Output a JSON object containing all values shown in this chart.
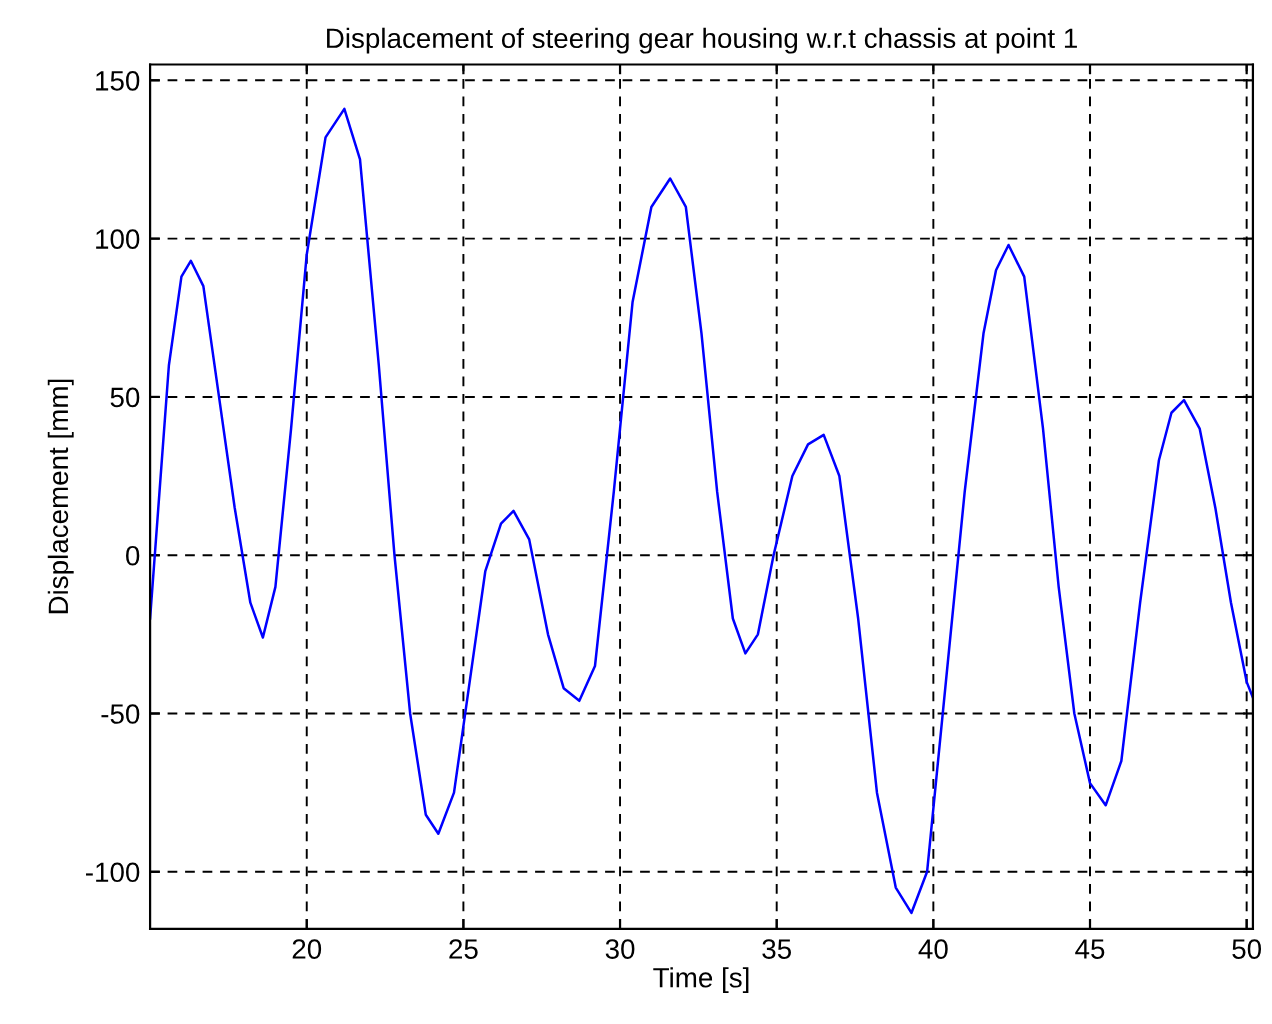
{
  "chart_data": {
    "type": "line",
    "title": "Displacement of steering gear housing w.r.t chassis at point 1",
    "xlabel": "Time [s]",
    "ylabel": "Displacement [mm]",
    "x": [
      15.0,
      15.3,
      15.6,
      16.0,
      16.3,
      16.7,
      17.2,
      17.7,
      18.2,
      18.6,
      19.0,
      19.5,
      20.0,
      20.6,
      21.2,
      21.7,
      22.3,
      22.8,
      23.3,
      23.8,
      24.2,
      24.7,
      25.2,
      25.7,
      26.2,
      26.6,
      27.1,
      27.7,
      28.2,
      28.7,
      29.2,
      29.8,
      30.4,
      31.0,
      31.6,
      32.1,
      32.6,
      33.1,
      33.6,
      34.0,
      34.4,
      34.9,
      35.5,
      36.0,
      36.5,
      37.0,
      37.6,
      38.2,
      38.8,
      39.3,
      39.8,
      40.4,
      41.0,
      41.6,
      42.0,
      42.4,
      42.9,
      43.5,
      44.0,
      44.5,
      45.0,
      45.5,
      46.0,
      46.6,
      47.2,
      47.6,
      48.0,
      48.5,
      49.0,
      49.5,
      50.0,
      50.2
    ],
    "series": [
      {
        "color": "#0000ff",
        "values": [
          -20,
          20,
          60,
          88,
          93,
          85,
          50,
          15,
          -15,
          -26,
          -10,
          40,
          95,
          132,
          141,
          125,
          60,
          0,
          -50,
          -82,
          -88,
          -75,
          -40,
          -5,
          10,
          14,
          5,
          -25,
          -42,
          -46,
          -35,
          20,
          80,
          110,
          119,
          110,
          70,
          20,
          -20,
          -31,
          -25,
          0,
          25,
          35,
          38,
          25,
          -20,
          -75,
          -105,
          -113,
          -100,
          -40,
          20,
          70,
          90,
          98,
          88,
          40,
          -10,
          -50,
          -72,
          -79,
          -65,
          -15,
          30,
          45,
          49,
          40,
          15,
          -15,
          -40,
          -45
        ]
      }
    ],
    "xlim": [
      15,
      50.2
    ],
    "ylim": [
      -118,
      155
    ],
    "xticks": [
      20,
      25,
      30,
      35,
      40,
      45,
      50
    ],
    "yticks": [
      -100,
      -50,
      0,
      50,
      100,
      150
    ],
    "grid": true,
    "marker": "none",
    "line_style": "solid"
  }
}
